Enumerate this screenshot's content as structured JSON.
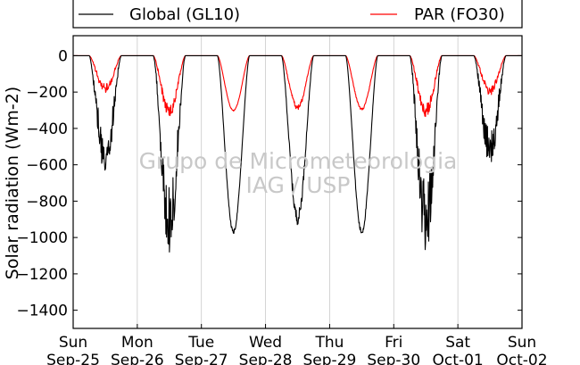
{
  "chart_data": {
    "type": "line",
    "title": "",
    "xlabel": "",
    "ylabel": "Solar radiation (Wm-2)",
    "ylim": [
      -1500,
      110
    ],
    "y_ticks": [
      0,
      -200,
      -400,
      -600,
      -800,
      -1000,
      -1200,
      -1400
    ],
    "x_days": [
      "Sun",
      "Mon",
      "Tue",
      "Wed",
      "Thu",
      "Fri",
      "Sat",
      "Sun"
    ],
    "x_dates": [
      "Sep-25",
      "Sep-26",
      "Sep-27",
      "Sep-28",
      "Sep-29",
      "Sep-30",
      "Oct-01",
      "Oct-02"
    ],
    "grid": "vertical",
    "legend_position": "top",
    "watermark": [
      "Grupo de Micrometeorologia",
      "IAG / USP"
    ],
    "series": [
      {
        "name": "Global (GL10)",
        "color": "#000000",
        "daily_min": [
          -670,
          -1080,
          -980,
          -930,
          -985,
          -1090,
          -610
        ],
        "noise": [
          0.85,
          0.8,
          0.02,
          0.08,
          0.03,
          0.85,
          0.8
        ]
      },
      {
        "name": "PAR (FO30)",
        "color": "#ff0000",
        "daily_min": [
          -210,
          -340,
          -305,
          -300,
          -300,
          -335,
          -220
        ],
        "noise": [
          0.6,
          0.55,
          0.02,
          0.1,
          0.05,
          0.55,
          0.55
        ]
      }
    ]
  }
}
